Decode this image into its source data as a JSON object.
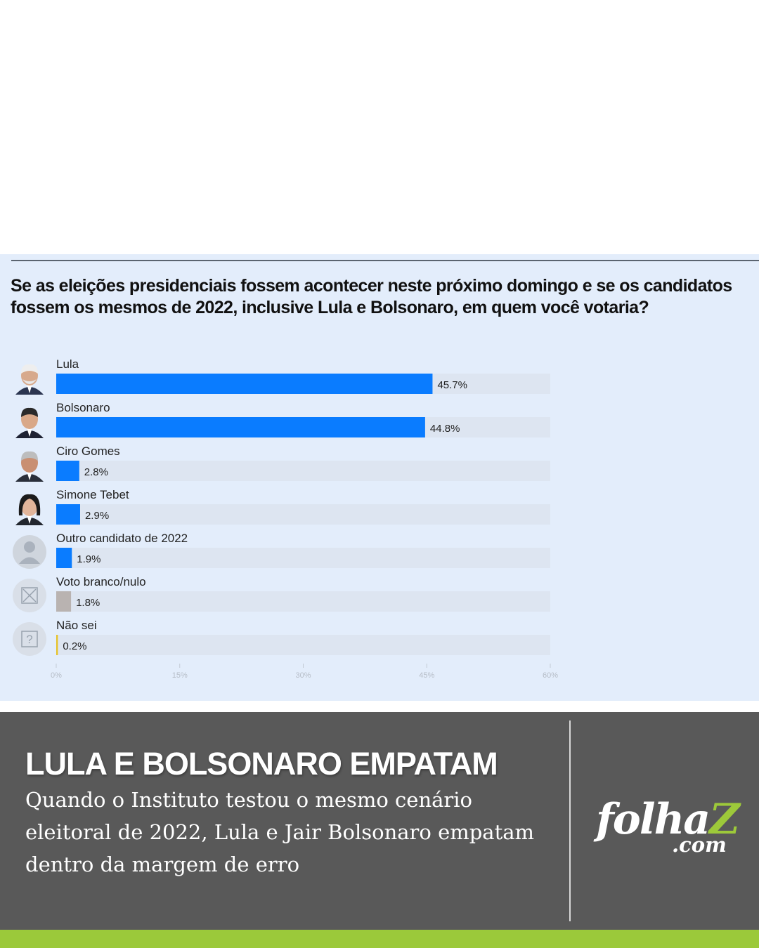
{
  "chart_data": {
    "type": "bar",
    "orientation": "horizontal",
    "title": "Se as eleições presidenciais fossem acontecer neste próximo domingo e se os candidatos fossem os mesmos de 2022, inclusive Lula e Bolsonaro, em quem você votaria?",
    "categories": [
      "Lula",
      "Bolsonaro",
      "Ciro Gomes",
      "Simone Tebet",
      "Outro candidato de 2022",
      "Voto branco/nulo",
      "Não sei"
    ],
    "values": [
      45.7,
      44.8,
      2.8,
      2.9,
      1.9,
      1.8,
      0.2
    ],
    "value_labels": [
      "45.7%",
      "44.8%",
      "2.8%",
      "2.9%",
      "1.9%",
      "1.8%",
      "0.2%"
    ],
    "bar_colors": [
      "#0a7cff",
      "#0a7cff",
      "#0a7cff",
      "#0a7cff",
      "#0a7cff",
      "#b9b3b1",
      "#e6c229"
    ],
    "icons": [
      "lula-portrait-icon",
      "bolsonaro-portrait-icon",
      "ciro-gomes-portrait-icon",
      "simone-tebet-portrait-icon",
      "generic-person-icon",
      "blank-vote-x-icon",
      "question-mark-icon"
    ],
    "xlim": [
      0,
      60
    ],
    "xticks": [
      0,
      15,
      30,
      45,
      60
    ],
    "xtick_labels": [
      "0%",
      "15%",
      "30%",
      "45%",
      "60%"
    ],
    "track_color": "#dde5f1",
    "grid": false,
    "legend": "none"
  },
  "caption": {
    "headline": "LULA E BOLSONARO EMPATAM",
    "body": "Quando o Instituto testou o mesmo cenário eleitoral de 2022, Lula e Jair Bolsonaro empatam dentro da margem de erro"
  },
  "brand": {
    "logo_main": "folha",
    "logo_z": "Z",
    "logo_com": ".com",
    "accent_color": "#9bc93a",
    "panel_color": "#595959"
  }
}
